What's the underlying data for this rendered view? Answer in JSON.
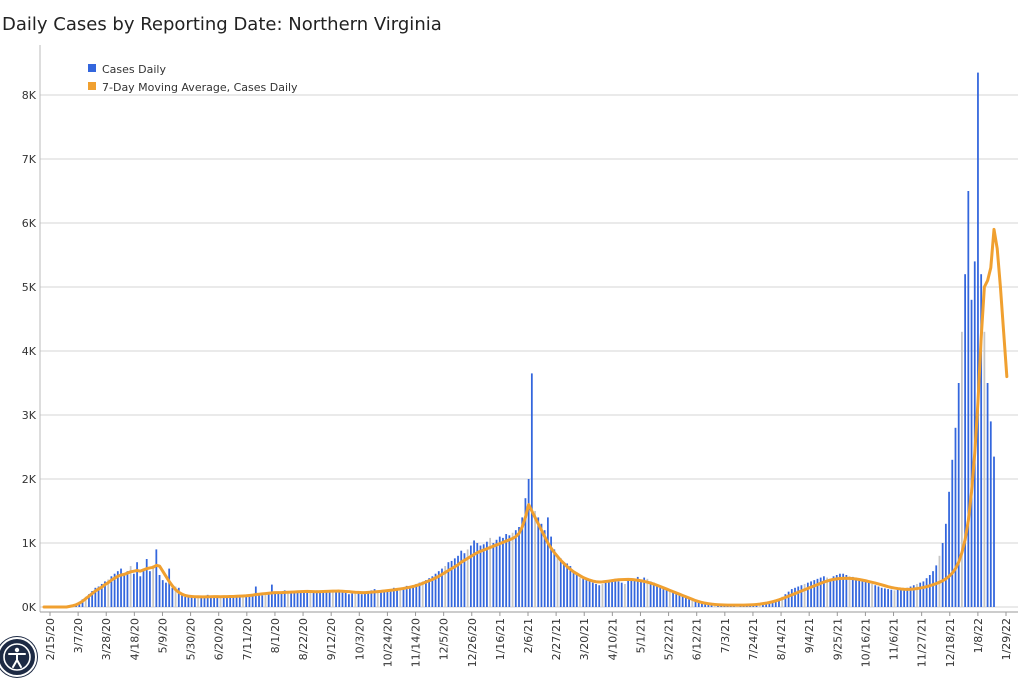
{
  "title": "Daily Cases by Reporting Date: Northern Virginia",
  "colors": {
    "bars": "#3366dd",
    "bar_alt": "#c6c6c6",
    "average": "#f0a030",
    "grid": "#d4d4d4"
  },
  "accessibility_icon": "accessibility-icon",
  "chart_data": {
    "type": "bar",
    "title": "Daily Cases by Reporting Date: Northern Virginia",
    "xlabel": "",
    "ylabel": "",
    "ylim": [
      0,
      8500
    ],
    "grid": "horizontal",
    "legend_placement": "top-left",
    "y_ticks": [
      {
        "value": 0,
        "label": "0K"
      },
      {
        "value": 1000,
        "label": "1K"
      },
      {
        "value": 2000,
        "label": "2K"
      },
      {
        "value": 3000,
        "label": "3K"
      },
      {
        "value": 4000,
        "label": "4K"
      },
      {
        "value": 5000,
        "label": "5K"
      },
      {
        "value": 6000,
        "label": "6K"
      },
      {
        "value": 7000,
        "label": "7K"
      },
      {
        "value": 8000,
        "label": "8K"
      }
    ],
    "x_ticks": [
      "2/15/20",
      "3/7/20",
      "3/28/20",
      "4/18/20",
      "5/9/20",
      "5/30/20",
      "6/20/20",
      "7/11/20",
      "8/1/20",
      "8/22/20",
      "9/12/20",
      "10/3/20",
      "10/24/20",
      "11/14/20",
      "12/5/20",
      "12/26/20",
      "1/16/21",
      "2/6/21",
      "2/27/21",
      "3/20/21",
      "4/10/21",
      "5/1/21",
      "5/22/21",
      "6/12/21",
      "7/3/21",
      "7/24/21",
      "8/14/21",
      "9/4/21",
      "9/25/21",
      "10/16/21",
      "11/6/21",
      "11/27/21",
      "12/18/21",
      "1/8/22",
      "1/29/22"
    ],
    "series": [
      {
        "name": "Cases Daily",
        "type": "bar",
        "values": [
          0,
          0,
          0,
          0,
          0,
          0,
          0,
          0,
          10,
          20,
          40,
          80,
          120,
          160,
          200,
          250,
          300,
          320,
          360,
          400,
          430,
          480,
          520,
          560,
          600,
          520,
          560,
          640,
          520,
          700,
          480,
          600,
          750,
          560,
          650,
          900,
          500,
          420,
          380,
          600,
          300,
          320,
          300,
          180,
          160,
          150,
          160,
          140,
          180,
          170,
          160,
          190,
          160,
          170,
          150,
          160,
          180,
          150,
          170,
          160,
          180,
          160,
          190,
          170,
          200,
          180,
          320,
          200,
          180,
          190,
          210,
          350,
          220,
          210,
          230,
          260,
          220,
          240,
          250,
          230,
          240,
          260,
          250,
          230,
          240,
          260,
          250,
          230,
          240,
          250,
          260,
          240,
          250,
          230,
          220,
          200,
          210,
          230,
          220,
          200,
          230,
          240,
          260,
          280,
          220,
          250,
          270,
          250,
          280,
          300,
          260,
          280,
          300,
          330,
          320,
          340,
          360,
          380,
          400,
          420,
          450,
          480,
          520,
          560,
          600,
          640,
          700,
          720,
          760,
          800,
          880,
          840,
          900,
          960,
          1040,
          1000,
          960,
          980,
          1020,
          1080,
          1000,
          1050,
          1100,
          1080,
          1140,
          1120,
          1160,
          1200,
          1250,
          1400,
          1700,
          2000,
          3650,
          1500,
          1400,
          1300,
          1200,
          1400,
          1100,
          900,
          800,
          760,
          700,
          680,
          640,
          560,
          500,
          460,
          440,
          420,
          400,
          380,
          360,
          340,
          360,
          380,
          400,
          420,
          440,
          400,
          380,
          360,
          420,
          450,
          430,
          470,
          420,
          460,
          440,
          400,
          380,
          340,
          320,
          300,
          280,
          260,
          240,
          220,
          200,
          180,
          160,
          140,
          120,
          100,
          80,
          70,
          60,
          60,
          50,
          40,
          40,
          40,
          30,
          30,
          30,
          30,
          30,
          30,
          30,
          30,
          30,
          30,
          40,
          40,
          50,
          60,
          70,
          80,
          100,
          130,
          160,
          200,
          240,
          280,
          300,
          320,
          340,
          360,
          380,
          400,
          420,
          440,
          460,
          480,
          460,
          440,
          480,
          500,
          520,
          520,
          500,
          480,
          470,
          460,
          440,
          420,
          400,
          380,
          360,
          340,
          320,
          300,
          290,
          280,
          270,
          260,
          270,
          280,
          290,
          300,
          320,
          340,
          360,
          380,
          400,
          450,
          500,
          560,
          650,
          800,
          1000,
          1300,
          1800,
          2300,
          2800,
          3500,
          4300,
          5200,
          6500,
          4800,
          5400,
          8350,
          5200,
          4300,
          3500,
          2900,
          2350
        ],
        "color": "#3366dd"
      },
      {
        "name": "7-Day Moving Average, Cases Daily",
        "type": "line",
        "values": [
          0,
          0,
          0,
          0,
          0,
          0,
          0,
          0,
          10,
          20,
          35,
          60,
          90,
          130,
          170,
          210,
          250,
          280,
          310,
          350,
          380,
          420,
          450,
          480,
          500,
          510,
          530,
          550,
          560,
          570,
          560,
          580,
          600,
          610,
          620,
          650,
          640,
          560,
          480,
          400,
          330,
          270,
          230,
          200,
          180,
          170,
          165,
          160,
          160,
          158,
          158,
          160,
          160,
          162,
          162,
          160,
          162,
          163,
          165,
          165,
          168,
          170,
          172,
          175,
          180,
          185,
          195,
          200,
          205,
          210,
          215,
          220,
          225,
          225,
          225,
          228,
          230,
          232,
          235,
          238,
          240,
          243,
          245,
          243,
          240,
          238,
          240,
          242,
          244,
          246,
          248,
          248,
          249,
          246,
          243,
          240,
          235,
          230,
          228,
          225,
          225,
          228,
          232,
          236,
          240,
          245,
          250,
          256,
          262,
          268,
          275,
          282,
          290,
          300,
          310,
          320,
          335,
          350,
          370,
          390,
          410,
          430,
          455,
          480,
          510,
          540,
          570,
          600,
          630,
          660,
          700,
          730,
          760,
          790,
          820,
          850,
          870,
          890,
          910,
          930,
          950,
          970,
          990,
          1010,
          1030,
          1050,
          1070,
          1100,
          1150,
          1250,
          1400,
          1600,
          1500,
          1400,
          1300,
          1200,
          1100,
          1000,
          920,
          850,
          790,
          730,
          680,
          630,
          590,
          550,
          520,
          490,
          460,
          440,
          420,
          405,
          395,
          390,
          392,
          398,
          405,
          412,
          420,
          425,
          428,
          430,
          432,
          430,
          425,
          418,
          410,
          400,
          388,
          374,
          358,
          340,
          320,
          300,
          280,
          260,
          240,
          220,
          200,
          180,
          160,
          140,
          120,
          100,
          85,
          70,
          60,
          52,
          45,
          40,
          36,
          33,
          31,
          30,
          30,
          30,
          30,
          30,
          30,
          31,
          33,
          36,
          40,
          45,
          52,
          60,
          70,
          82,
          96,
          112,
          130,
          150,
          170,
          190,
          210,
          230,
          250,
          270,
          290,
          310,
          330,
          350,
          370,
          390,
          405,
          420,
          432,
          440,
          445,
          448,
          450,
          448,
          444,
          438,
          430,
          420,
          410,
          398,
          386,
          374,
          360,
          346,
          332,
          318,
          306,
          296,
          288,
          282,
          278,
          276,
          278,
          282,
          288,
          296,
          306,
          318,
          332,
          348,
          366,
          386,
          410,
          440,
          480,
          530,
          600,
          700,
          850,
          1050,
          1350,
          1800,
          2400,
          3200,
          4200,
          5000,
          5100,
          5300,
          5900,
          5600,
          5000,
          4300,
          3600
        ],
        "color": "#f0a030"
      }
    ]
  }
}
